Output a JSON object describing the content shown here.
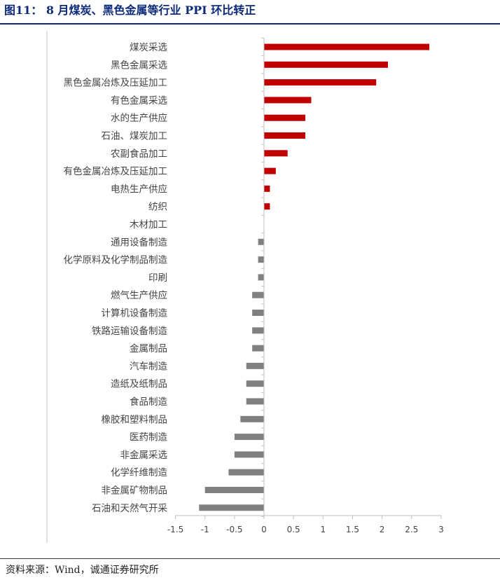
{
  "header": {
    "title": "图11： 8 月煤炭、黑色金属等行业 PPI 环比转正"
  },
  "footer": {
    "source": "资料来源：Wind，诚通证券研究所"
  },
  "colors": {
    "positive": "#c00000",
    "negative": "#808080",
    "title": "#0c2a7a"
  },
  "chart_data": {
    "type": "bar",
    "orientation": "horizontal",
    "categories": [
      "煤炭采选",
      "黑色金属采选",
      "黑色金属冶炼及压延加工",
      "有色金属采选",
      "水的生产供应",
      "石油、煤炭加工",
      "农副食品加工",
      "有色金属冶炼及压延加工",
      "电热生产供应",
      "纺织",
      "木材加工",
      "通用设备制造",
      "化学原料及化学制品制造",
      "印刷",
      "燃气生产供应",
      "计算机设备制造",
      "铁路运输设备制造",
      "金属制品",
      "汽车制造",
      "造纸及纸制品",
      "食品制造",
      "橡胶和塑料制品",
      "医药制造",
      "非金属采选",
      "化学纤维制造",
      "非金属矿物制品",
      "石油和天然气开采"
    ],
    "values": [
      2.8,
      2.1,
      1.9,
      0.8,
      0.7,
      0.7,
      0.4,
      0.2,
      0.1,
      0.1,
      0.0,
      -0.1,
      -0.1,
      -0.1,
      -0.2,
      -0.2,
      -0.2,
      -0.2,
      -0.3,
      -0.3,
      -0.3,
      -0.4,
      -0.5,
      -0.5,
      -0.6,
      -1.0,
      -1.1
    ],
    "xlim": [
      -1.5,
      3
    ],
    "xticks": [
      "-1.5",
      "-1",
      "-0.5",
      "0",
      "0.5",
      "1",
      "1.5",
      "2",
      "2.5",
      "3"
    ],
    "grid": false,
    "legend": "none"
  }
}
